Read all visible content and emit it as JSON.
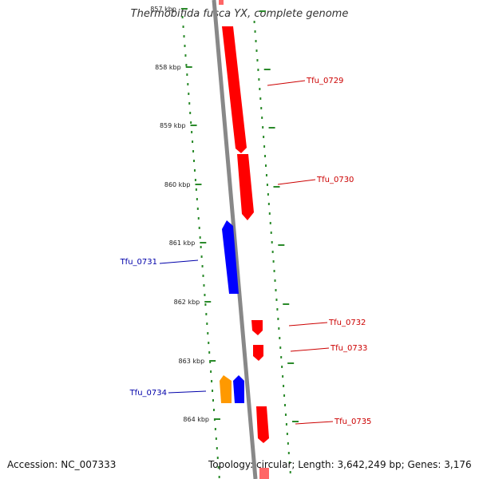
{
  "title": "Thermobifida fusca YX, complete genome",
  "footer": {
    "accession": "Accession: NC_007333",
    "summary": "Topology: circular; Length: 3,642,249 bp; Genes: 3,176"
  },
  "ruler": {
    "ticks": [
      "857 kbp",
      "858 kbp",
      "859 kbp",
      "860 kbp",
      "861 kbp",
      "862 kbp",
      "863 kbp",
      "864 kbp"
    ],
    "tick_color": "#2a8a2a"
  },
  "genes": [
    {
      "name": "Tfu_0729",
      "strand": "+",
      "color": "#ff0000",
      "label_color": "#cc0000"
    },
    {
      "name": "Tfu_0730",
      "strand": "+",
      "color": "#ff0000",
      "label_color": "#cc0000"
    },
    {
      "name": "Tfu_0731",
      "strand": "-",
      "color": "#0000ff",
      "label_color": "#0000aa"
    },
    {
      "name": "Tfu_0732",
      "strand": "+",
      "color": "#ff0000",
      "label_color": "#cc0000"
    },
    {
      "name": "Tfu_0733",
      "strand": "+",
      "color": "#ff0000",
      "label_color": "#cc0000"
    },
    {
      "name": "Tfu_0734",
      "strand": "-",
      "color": "#ff9900",
      "label_color": "#0000aa"
    },
    {
      "name": "",
      "strand": "-",
      "color": "#0000ff",
      "label_color": "#0000aa"
    },
    {
      "name": "Tfu_0735",
      "strand": "+",
      "color": "#ff0000",
      "label_color": "#cc0000"
    }
  ],
  "colors": {
    "backbone": "#888888",
    "forward_gene": "#ff0000",
    "reverse_gene": "#0000ff",
    "other_gene": "#ff9900"
  }
}
